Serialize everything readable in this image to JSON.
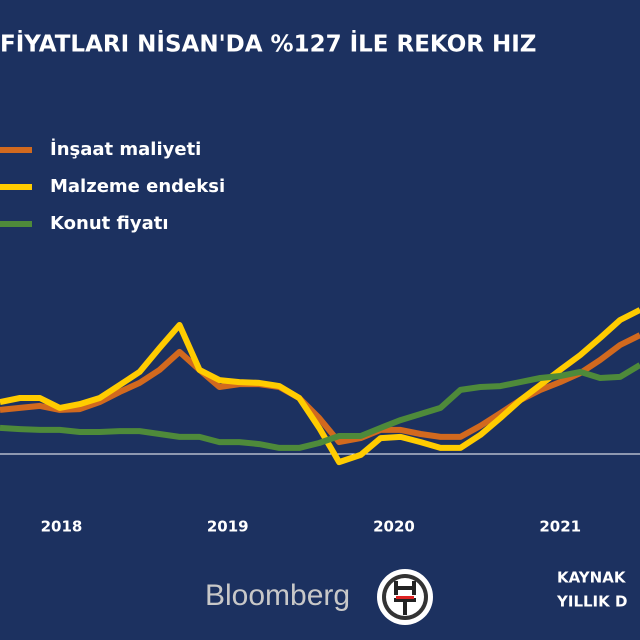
{
  "chart_data": {
    "type": "line",
    "title": "FİYATLARI NİSAN'DA %127 İLE REKOR HIZ",
    "x": [
      2017.63,
      2017.75,
      2017.87,
      2017.99,
      2018.11,
      2018.23,
      2018.35,
      2018.47,
      2018.59,
      2018.71,
      2018.83,
      2018.95,
      2019.07,
      2019.19,
      2019.31,
      2019.43,
      2019.55,
      2019.67,
      2019.8,
      2019.92,
      2020.04,
      2020.16,
      2020.28,
      2020.4,
      2020.52,
      2020.64,
      2020.76,
      2020.88,
      2021.0,
      2021.12,
      2021.24,
      2021.36,
      2021.48
    ],
    "xlim": [
      2017.63,
      2021.48
    ],
    "xticks": [
      2018,
      2019,
      2020,
      2021
    ],
    "ylim": [
      -10,
      80
    ],
    "zero_line": true,
    "series": [
      {
        "name": "İnşaat maliyeti",
        "color": "#d2691e",
        "values": [
          15.2,
          15.9,
          16.6,
          15.2,
          15.5,
          17.9,
          21.4,
          24.5,
          29.0,
          35.2,
          29.0,
          23.1,
          24.1,
          24.1,
          23.1,
          19.3,
          12.4,
          4.1,
          5.5,
          8.3,
          8.3,
          6.9,
          5.9,
          5.9,
          9.7,
          14.1,
          18.6,
          22.1,
          24.8,
          27.9,
          32.4,
          37.6,
          41.0
        ]
      },
      {
        "name": "Malzeme endeksi",
        "color": "#ffcc00",
        "values": [
          17.9,
          19.3,
          19.3,
          15.9,
          17.2,
          19.3,
          23.8,
          28.3,
          36.6,
          44.5,
          29.0,
          25.5,
          24.8,
          24.5,
          23.4,
          19.3,
          9.0,
          -2.8,
          -0.3,
          5.5,
          5.9,
          4.1,
          2.1,
          2.1,
          6.6,
          12.4,
          18.6,
          23.8,
          29.0,
          34.1,
          40.0,
          46.2,
          49.7
        ]
      },
      {
        "name": "Konut fiyatı",
        "color": "#4e8a3a",
        "values": [
          9.0,
          8.6,
          8.3,
          8.3,
          7.6,
          7.6,
          7.9,
          7.9,
          6.9,
          5.9,
          5.9,
          4.1,
          4.1,
          3.4,
          2.1,
          2.1,
          3.8,
          6.2,
          6.2,
          9.0,
          11.7,
          13.8,
          15.9,
          22.1,
          23.1,
          23.4,
          24.8,
          26.2,
          26.9,
          28.3,
          26.2,
          26.6,
          30.7
        ]
      }
    ],
    "logo": "Bloomberg",
    "source_lines": [
      "KAYNAK",
      "YILLIK D"
    ]
  }
}
